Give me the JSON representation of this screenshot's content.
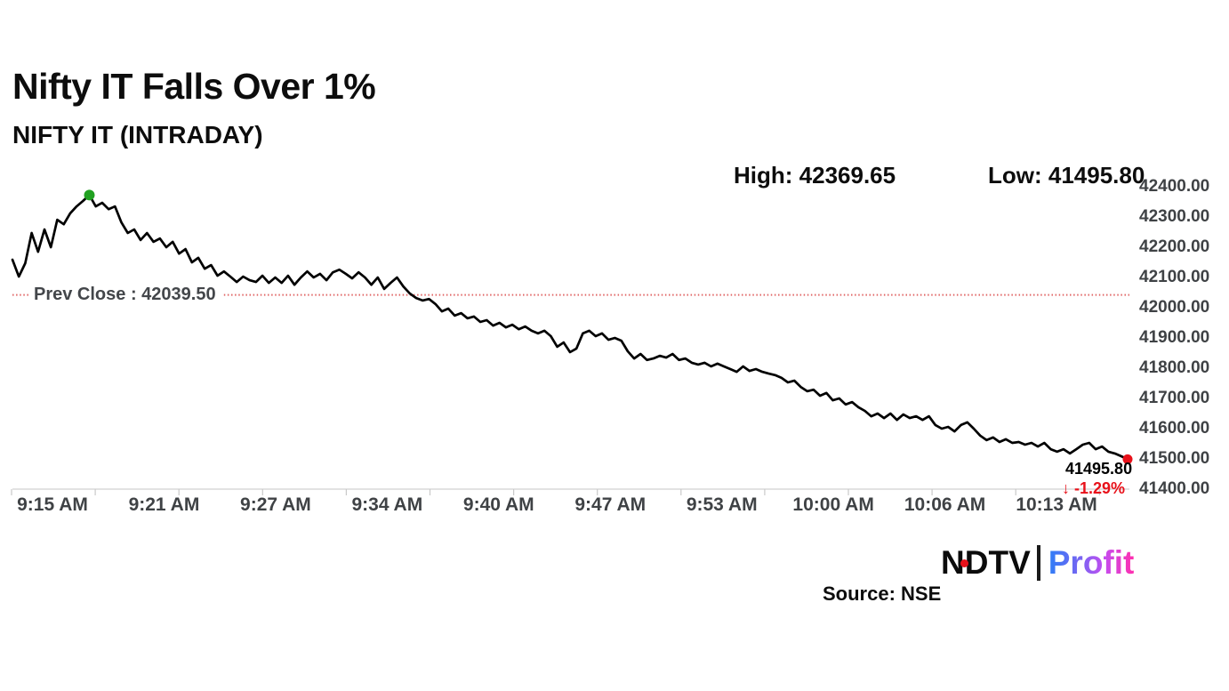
{
  "header": {
    "title": "Nifty IT Falls Over 1%",
    "subtitle": "NIFTY IT (INTRADAY)"
  },
  "stats": {
    "high_text": "High: 42369.65",
    "low_text": "Low: 41495.80"
  },
  "annotations": {
    "prev_close_text": "Prev Close : 42039.50",
    "last_value_text": "41495.80",
    "change_text": "↓ -1.29%"
  },
  "footer": {
    "logo": {
      "n": "N",
      "d": "D",
      "tv": "TV",
      "separator": "|",
      "profit": "Profit"
    },
    "source": "Source: NSE"
  },
  "colors": {
    "line": "#000000",
    "prev_close_line": "#e06666",
    "high_dot": "#21a121",
    "low_dot": "#e8111a",
    "change_text": "#e8111a",
    "axis": "#d9d9d9",
    "tick_label": "#3f4245"
  },
  "chart_data": {
    "type": "line",
    "title": "NIFTY IT (INTRADAY)",
    "xlabel": "",
    "ylabel": "",
    "x_labels": [
      "9:15 AM",
      "9:21 AM",
      "9:27 AM",
      "9:34 AM",
      "9:40 AM",
      "9:47 AM",
      "9:53 AM",
      "10:00 AM",
      "10:06 AM",
      "10:13 AM"
    ],
    "y_ticks": [
      "42400.00",
      "42300.00",
      "42200.00",
      "42100.00",
      "42000.00",
      "41900.00",
      "41800.00",
      "41700.00",
      "41600.00",
      "41500.00",
      "41400.00"
    ],
    "ylim": [
      41400,
      42400
    ],
    "grid": false,
    "legend": "none",
    "prev_close": 42039.5,
    "high": 42369.65,
    "low": 41495.8,
    "last": 41495.8,
    "last_change_pct": -1.29,
    "series": [
      {
        "name": "NIFTY IT",
        "values": [
          42156,
          42100,
          42144,
          42244,
          42182,
          42256,
          42197,
          42288,
          42273,
          42309,
          42332,
          42350,
          42369.65,
          42332,
          42344,
          42323,
          42332,
          42279,
          42244,
          42256,
          42221,
          42244,
          42215,
          42226,
          42197,
          42215,
          42176,
          42191,
          42147,
          42162,
          42126,
          42138,
          42103,
          42117,
          42100,
          42082,
          42100,
          42088,
          42082,
          42103,
          42079,
          42097,
          42079,
          42103,
          42073,
          42097,
          42117,
          42097,
          42109,
          42088,
          42114,
          42123,
          42109,
          42094,
          42114,
          42097,
          42073,
          42097,
          42059,
          42079,
          42097,
          42067,
          42044,
          42029,
          42021,
          42026,
          42009,
          41985,
          41994,
          41971,
          41979,
          41962,
          41968,
          41950,
          41956,
          41938,
          41947,
          41932,
          41941,
          41926,
          41935,
          41921,
          41912,
          41921,
          41903,
          41868,
          41882,
          41850,
          41862,
          41912,
          41921,
          41903,
          41912,
          41891,
          41897,
          41888,
          41853,
          41829,
          41844,
          41824,
          41829,
          41838,
          41832,
          41844,
          41824,
          41829,
          41815,
          41809,
          41815,
          41803,
          41812,
          41803,
          41794,
          41785,
          41803,
          41788,
          41794,
          41785,
          41779,
          41774,
          41765,
          41750,
          41756,
          41735,
          41721,
          41726,
          41706,
          41715,
          41691,
          41697,
          41677,
          41685,
          41668,
          41656,
          41638,
          41647,
          41632,
          41647,
          41626,
          41644,
          41632,
          41638,
          41626,
          41638,
          41609,
          41597,
          41603,
          41588,
          41609,
          41618,
          41597,
          41574,
          41559,
          41568,
          41553,
          41562,
          41550,
          41553,
          41544,
          41550,
          41538,
          41550,
          41529,
          41521,
          41529,
          41515,
          41529,
          41544,
          41550,
          41529,
          41538,
          41521,
          41515,
          41506,
          41495.8
        ]
      }
    ]
  }
}
